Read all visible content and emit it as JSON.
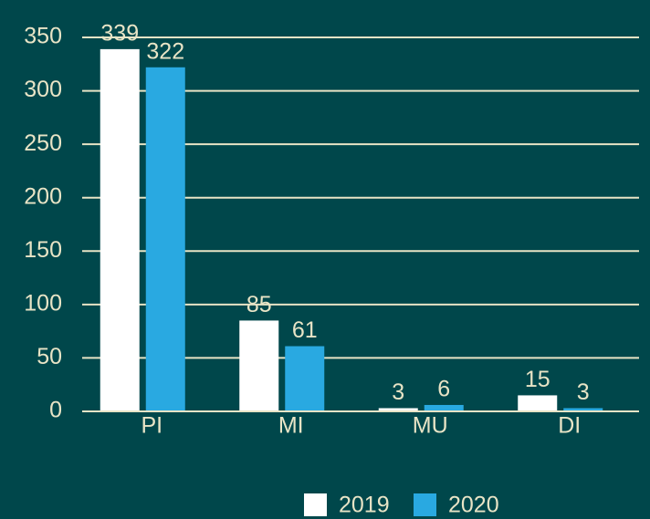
{
  "chart_data": {
    "type": "bar",
    "categories": [
      "PI",
      "MI",
      "MU",
      "DI"
    ],
    "series": [
      {
        "name": "2019",
        "color": "#ffffff",
        "values": [
          339,
          85,
          3,
          15
        ]
      },
      {
        "name": "2020",
        "color": "#29a9e1",
        "values": [
          322,
          61,
          6,
          3
        ]
      }
    ],
    "ylim": [
      0,
      350
    ],
    "yticks": [
      0,
      50,
      100,
      150,
      200,
      250,
      300,
      350
    ],
    "grid": true,
    "legend": "bottom"
  }
}
